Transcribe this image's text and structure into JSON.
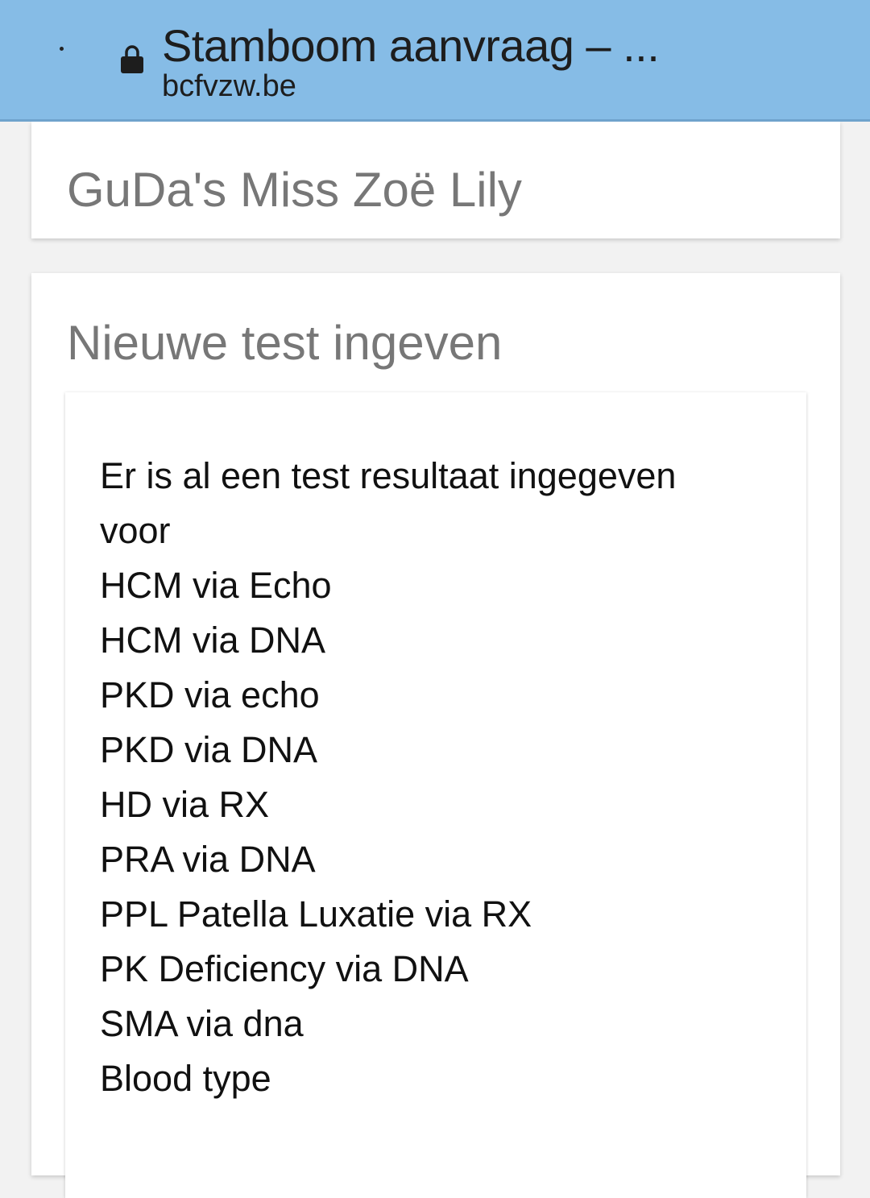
{
  "browser": {
    "title": "Stamboom aanvraag – ...",
    "url": "bcfvzw.be",
    "icons": [
      "lock-icon"
    ],
    "bar_color": "#86bce6"
  },
  "header_card": {
    "name": "GuDa's Miss Zoë Lily"
  },
  "test_card": {
    "heading": "Nieuwe test ingeven",
    "message_line1": "Er is al een test resultaat ingegeven",
    "message_line2": "voor",
    "tests": [
      "HCM via Echo",
      "HCM via DNA",
      "PKD via echo",
      "PKD via DNA",
      "HD via RX",
      "PRA via DNA",
      "PPL Patella Luxatie via RX",
      "PK Deficiency via DNA",
      "SMA via dna",
      "Blood type"
    ]
  }
}
